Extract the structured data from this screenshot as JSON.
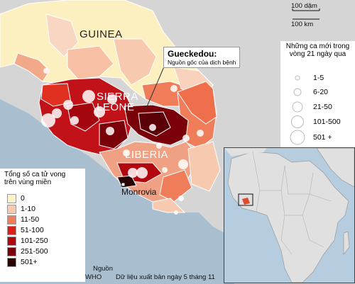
{
  "scale": {
    "miles": "100 dặm",
    "km": "100 km"
  },
  "countries": {
    "guinea": "GUINEA",
    "sierra_leone_1": "SIERRA",
    "sierra_leone_2": "LEONE",
    "liberia": "LIBERIA"
  },
  "city": "Monrovia",
  "callout": {
    "title": "Gueckedou:",
    "subtitle": "Nguồn gốc của dịch bệnh"
  },
  "bubble_legend": {
    "title_1": "Những ca mới trong",
    "title_2": "vòng 21 ngày qua",
    "items": [
      "1-5",
      "6-20",
      "21-50",
      "101-500",
      "501 +"
    ]
  },
  "choropleth_legend": {
    "title_1": "Tổng số ca tử vong",
    "title_2": "trên vùng miền",
    "items": [
      {
        "label": "0",
        "color": "#fdf3c8"
      },
      {
        "label": "1-10",
        "color": "#f7c9ae"
      },
      {
        "label": "11-50",
        "color": "#ef7d5a"
      },
      {
        "label": "51-100",
        "color": "#d9201a"
      },
      {
        "label": "101-250",
        "color": "#b2070f"
      },
      {
        "label": "251-500",
        "color": "#7a0009"
      },
      {
        "label": "501+",
        "color": "#2a0203"
      }
    ]
  },
  "source": {
    "label": "Nguồn",
    "org": "WHO",
    "text": "Dữ liệu xuất bản ngày 5 tháng 11"
  },
  "colors": {
    "sea": "#a9bfd0",
    "land_other": "#d4d4d4",
    "border": "#ffffff"
  }
}
